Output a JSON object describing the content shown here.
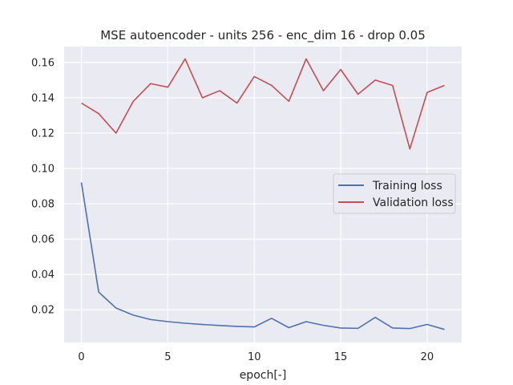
{
  "chart_data": {
    "type": "line",
    "title": "MSE autoencoder - units 256 - enc_dim 16 - drop 0.05",
    "xlabel": "epoch[-]",
    "ylabel": "",
    "x": [
      0,
      1,
      2,
      3,
      4,
      5,
      6,
      7,
      8,
      9,
      10,
      11,
      12,
      13,
      14,
      15,
      16,
      17,
      18,
      19,
      20,
      21
    ],
    "xlim": [
      -1,
      22
    ],
    "ylim": [
      0.0015,
      0.169
    ],
    "xticks": [
      0,
      5,
      10,
      15,
      20
    ],
    "xtick_labels": [
      "0",
      "5",
      "10",
      "15",
      "20"
    ],
    "yticks": [
      0.02,
      0.04,
      0.06,
      0.08,
      0.1,
      0.12,
      0.14,
      0.16
    ],
    "ytick_labels": [
      "0.02",
      "0.04",
      "0.06",
      "0.08",
      "0.10",
      "0.12",
      "0.14",
      "0.16"
    ],
    "grid": true,
    "legend_position": "center-right",
    "background": "#eaeaf2",
    "series": [
      {
        "name": "Training loss",
        "color": "#4c72b0",
        "values": [
          0.092,
          0.03,
          0.021,
          0.017,
          0.0145,
          0.0133,
          0.0124,
          0.0117,
          0.0111,
          0.0106,
          0.0103,
          0.0152,
          0.0099,
          0.0133,
          0.0112,
          0.0097,
          0.0095,
          0.0157,
          0.0097,
          0.0094,
          0.0117,
          0.0089
        ]
      },
      {
        "name": "Validation loss",
        "color": "#c44e52",
        "values": [
          0.137,
          0.131,
          0.12,
          0.138,
          0.148,
          0.146,
          0.162,
          0.14,
          0.144,
          0.137,
          0.152,
          0.147,
          0.138,
          0.162,
          0.144,
          0.156,
          0.142,
          0.15,
          0.147,
          0.111,
          0.143,
          0.147
        ]
      }
    ]
  }
}
